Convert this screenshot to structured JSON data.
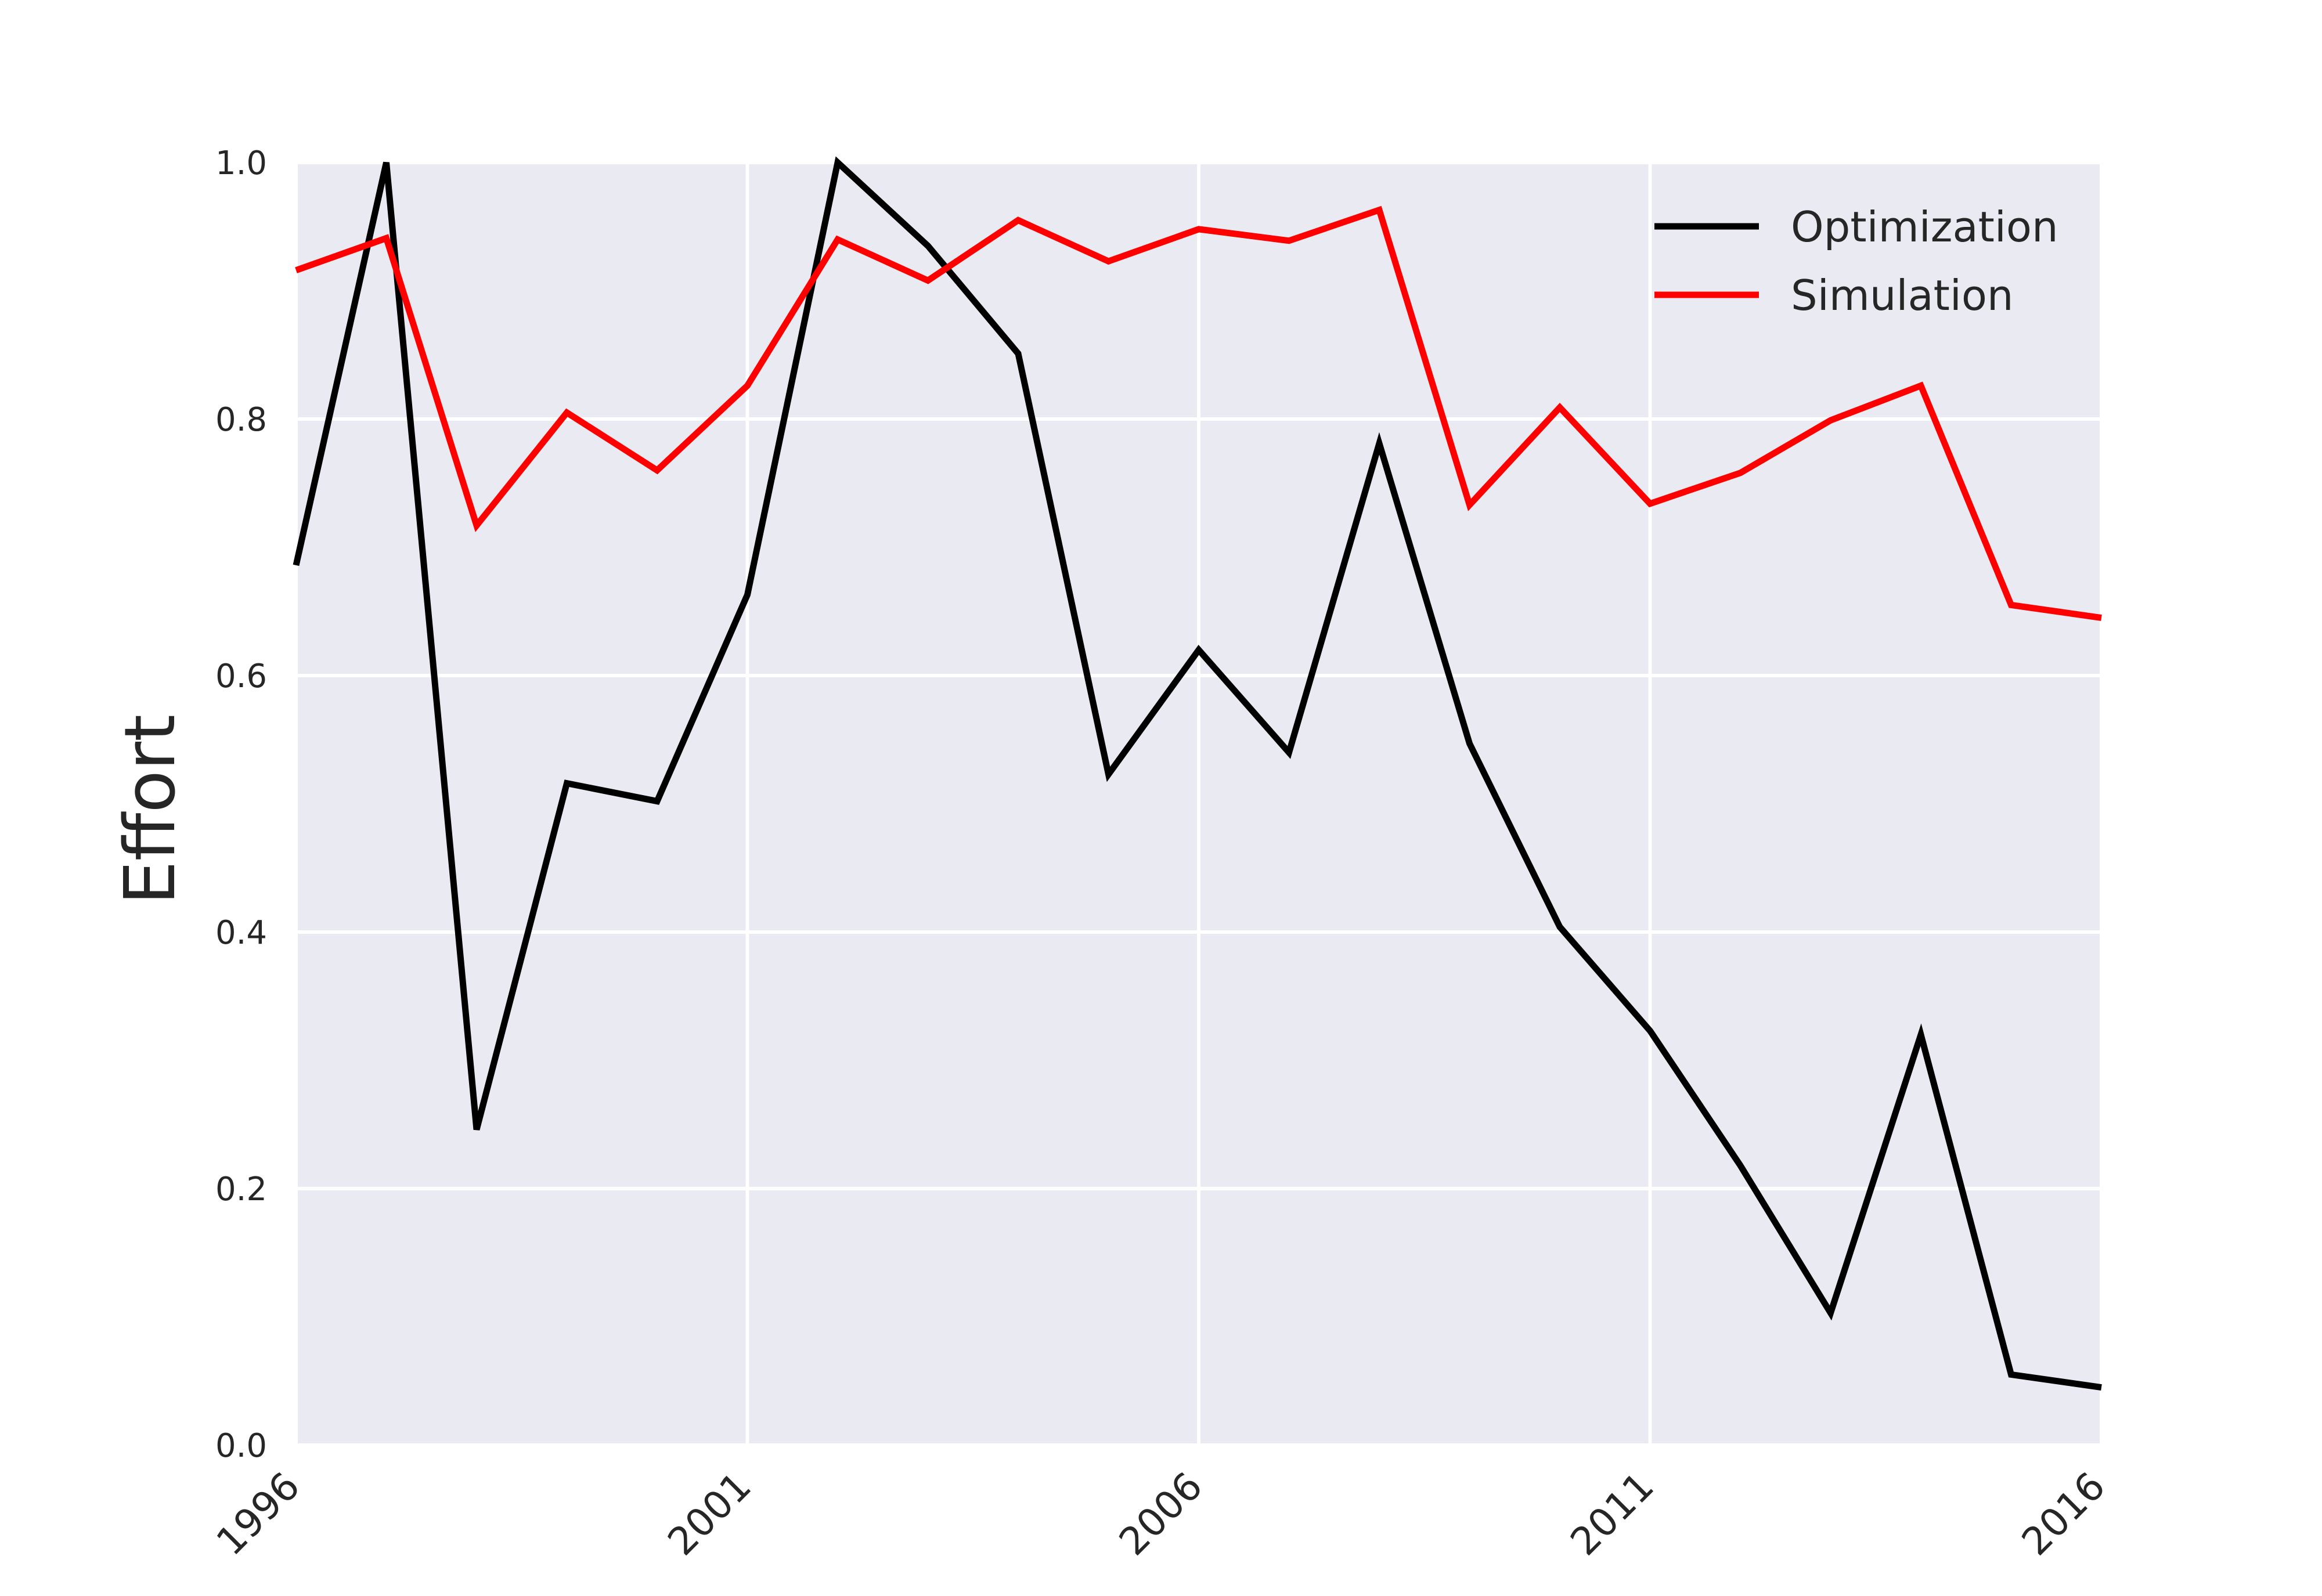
{
  "chart_data": {
    "type": "line",
    "title": "",
    "xlabel": "",
    "ylabel": "Effort",
    "xlim": [
      1996,
      2016
    ],
    "ylim": [
      0.0,
      1.0
    ],
    "x_ticks": [
      1996,
      2001,
      2006,
      2011,
      2016
    ],
    "y_ticks": [
      0.0,
      0.2,
      0.4,
      0.6,
      0.8,
      1.0
    ],
    "x_tick_labels": [
      "1996",
      "2001",
      "2006",
      "2011",
      "2016"
    ],
    "y_tick_labels": [
      "0.0",
      "0.2",
      "0.4",
      "0.6",
      "0.8",
      "1.0"
    ],
    "grid": true,
    "legend_position": "top-right",
    "x": [
      1996,
      1997,
      1998,
      1999,
      2000,
      2001,
      2002,
      2003,
      2004,
      2005,
      2006,
      2007,
      2008,
      2009,
      2010,
      2011,
      2012,
      2013,
      2014,
      2015,
      2016
    ],
    "series": [
      {
        "name": "Optimization",
        "color": "#000000",
        "values": [
          0.686,
          1.0,
          0.246,
          0.516,
          0.502,
          0.663,
          1.0,
          0.935,
          0.851,
          0.523,
          0.62,
          0.54,
          0.781,
          0.547,
          0.404,
          0.323,
          0.218,
          0.103,
          0.32,
          0.055,
          0.045
        ]
      },
      {
        "name": "Simulation",
        "color": "#ff0000",
        "values": [
          0.916,
          0.941,
          0.717,
          0.805,
          0.76,
          0.826,
          0.94,
          0.908,
          0.955,
          0.923,
          0.948,
          0.939,
          0.963,
          0.733,
          0.809,
          0.734,
          0.758,
          0.799,
          0.826,
          0.655,
          0.645
        ]
      }
    ]
  }
}
